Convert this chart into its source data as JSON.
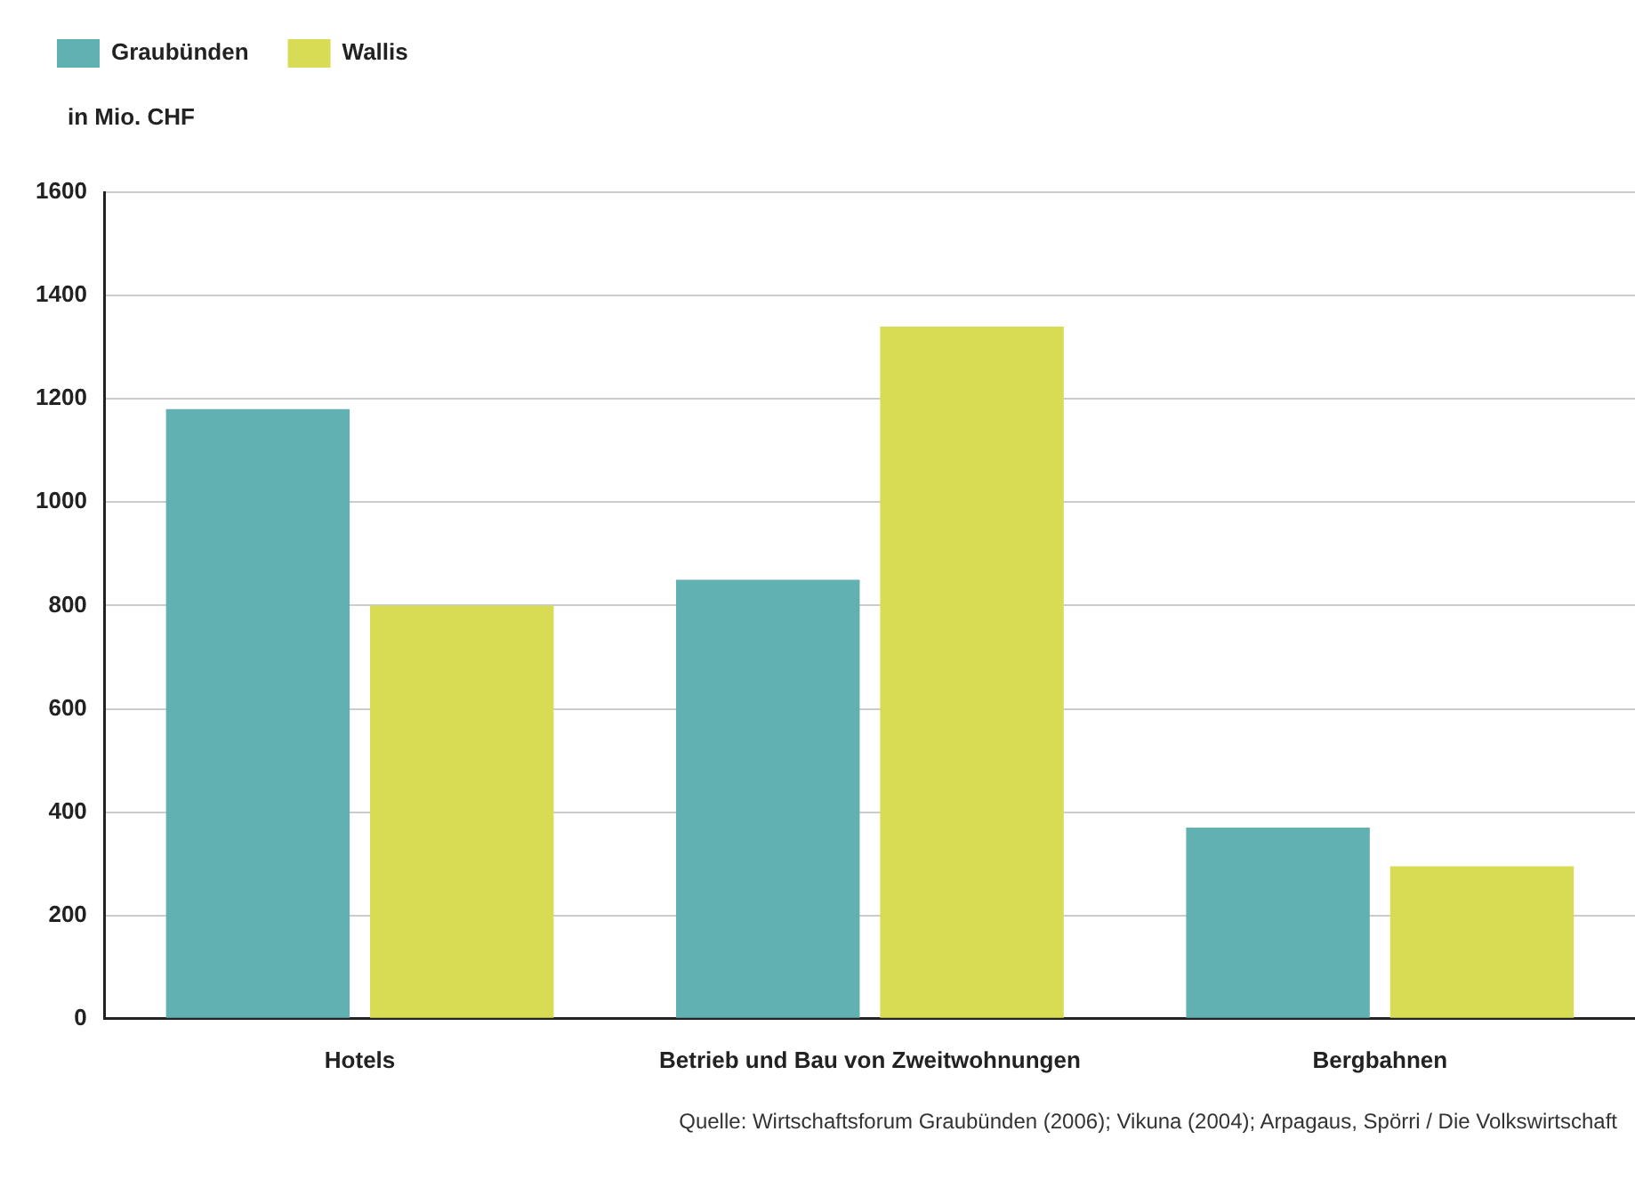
{
  "chart_data": {
    "type": "bar",
    "ylabel": "in Mio. CHF",
    "categories": [
      "Hotels",
      "Betrieb und Bau von Zweitwohnungen",
      "Bergbahnen"
    ],
    "series": [
      {
        "name": "Graubünden",
        "color": "#61b0b2",
        "values": [
          1180,
          850,
          370
        ]
      },
      {
        "name": "Wallis",
        "color": "#d8dc55",
        "values": [
          800,
          1340,
          295
        ]
      }
    ],
    "ylim": [
      0,
      1600
    ],
    "yticks": [
      0,
      200,
      400,
      600,
      800,
      1000,
      1200,
      1400,
      1600
    ],
    "grid": "y",
    "legend": "top left",
    "annotations": [
      "Quelle: Wirtschaftsforum Graubünden (2006); Vikuna (2004); Arpagaus, Spörri / Die Volkswirtschaft"
    ]
  }
}
